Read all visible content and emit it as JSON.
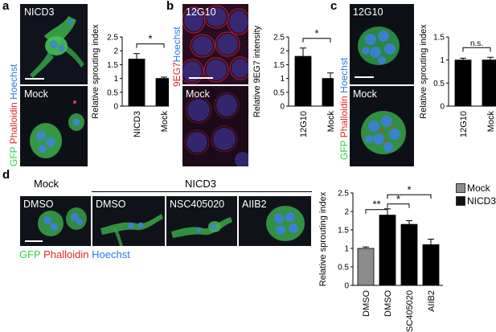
{
  "panels": {
    "a": {
      "letter": "a",
      "top_label": "NICD3",
      "bottom_label": "Mock",
      "stain": [
        {
          "text": "GFP ",
          "color": "green"
        },
        {
          "text": "Phalloidin ",
          "color": "red"
        },
        {
          "text": "Hoechst",
          "color": "blue"
        }
      ]
    },
    "b": {
      "letter": "b",
      "top_label": "12G10",
      "bottom_label": "Mock",
      "stain": [
        {
          "text": "9EG7",
          "color": "red"
        },
        {
          "text": "Hoechst",
          "color": "blue"
        }
      ]
    },
    "c": {
      "letter": "c",
      "top_label": "12G10",
      "bottom_label": "Mock",
      "stain": [
        {
          "text": "GFP ",
          "color": "green"
        },
        {
          "text": "Phalloidin ",
          "color": "red"
        },
        {
          "text": "Hoechst",
          "color": "blue"
        }
      ]
    },
    "d": {
      "letter": "d",
      "group_mock": "Mock",
      "group_nicd3": "NICD3",
      "images": [
        "DMSO",
        "DMSO",
        "NSC405020",
        "AIIB2"
      ],
      "stain": [
        {
          "text": "GFP ",
          "color": "green"
        },
        {
          "text": "Phalloidin ",
          "color": "red"
        },
        {
          "text": "Hoechst",
          "color": "blue"
        }
      ]
    }
  },
  "legend": {
    "items": [
      {
        "name": "Mock",
        "color": "#8c8c8c"
      },
      {
        "name": "NICD3",
        "color": "#111111"
      }
    ]
  },
  "chart_data": [
    {
      "id": "a",
      "type": "bar",
      "ylabel": "Relative sprouting index",
      "categories": [
        "NICD3",
        "Mock"
      ],
      "values": [
        1.7,
        1.0
      ],
      "errors": [
        0.2,
        0.05
      ],
      "ylim": [
        0,
        2.5
      ],
      "yticks": [
        0,
        0.5,
        1,
        1.5,
        2,
        2.5
      ],
      "colors": [
        "#000000",
        "#000000"
      ],
      "significance": [
        {
          "from": 0,
          "to": 1,
          "label": "*"
        }
      ]
    },
    {
      "id": "b",
      "type": "bar",
      "ylabel": "Relative 9EG7 intensity",
      "categories": [
        "12G10",
        "Mock"
      ],
      "values": [
        1.8,
        1.0
      ],
      "errors": [
        0.3,
        0.2
      ],
      "ylim": [
        0,
        2.5
      ],
      "yticks": [
        0,
        0.5,
        1,
        1.5,
        2,
        2.5
      ],
      "colors": [
        "#000000",
        "#000000"
      ],
      "significance": [
        {
          "from": 0,
          "to": 1,
          "label": "*"
        }
      ]
    },
    {
      "id": "c",
      "type": "bar",
      "ylabel": "Relative sprouting index",
      "categories": [
        "12G10",
        "Mock"
      ],
      "values": [
        1.0,
        1.0
      ],
      "errors": [
        0.04,
        0.06
      ],
      "ylim": [
        0,
        1.5
      ],
      "yticks": [
        0,
        0.5,
        1,
        1.5
      ],
      "colors": [
        "#000000",
        "#000000"
      ],
      "significance": [
        {
          "from": 0,
          "to": 1,
          "label": "n.s."
        }
      ]
    },
    {
      "id": "d",
      "type": "bar",
      "ylabel": "Relative sprouting index",
      "categories": [
        "DMSO",
        "DMSO",
        "NSC405020",
        "AIIB2"
      ],
      "values": [
        1.0,
        1.9,
        1.65,
        1.1
      ],
      "errors": [
        0.04,
        0.17,
        0.1,
        0.15
      ],
      "ylim": [
        0,
        2.5
      ],
      "yticks": [
        0,
        0.5,
        1,
        1.5,
        2,
        2.5
      ],
      "colors": [
        "#8c8c8c",
        "#000000",
        "#000000",
        "#000000"
      ],
      "significance": [
        {
          "from": 0,
          "to": 1,
          "label": "**"
        },
        {
          "from": 1,
          "to": 2,
          "label": "*"
        },
        {
          "from": 1,
          "to": 3,
          "label": "*"
        }
      ]
    }
  ]
}
